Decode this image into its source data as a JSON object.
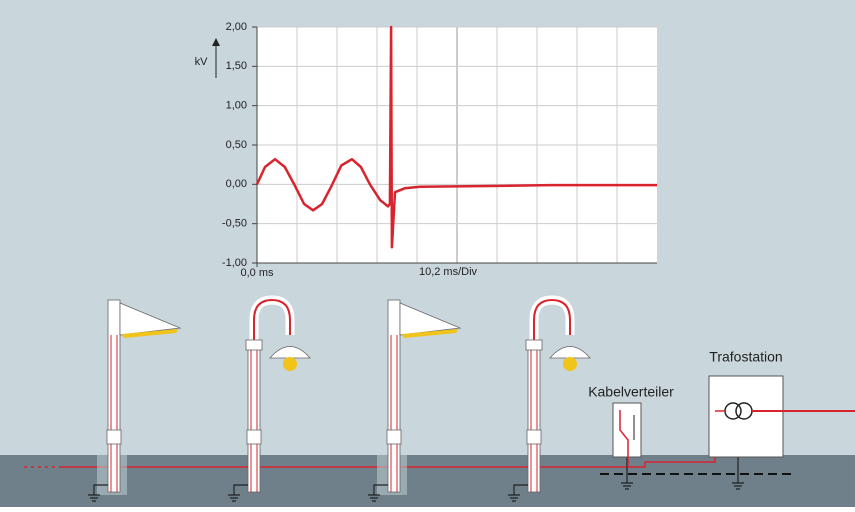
{
  "chart_data": {
    "type": "line",
    "x": [
      0,
      2.04,
      4.6,
      7.1,
      9.7,
      12,
      14.3,
      16.6,
      19,
      21.5,
      24.2,
      26.5,
      28.8,
      31.4,
      33.4,
      33.9,
      34.2,
      34.4,
      35.2,
      37.7,
      41.6,
      62,
      74.7,
      102
    ],
    "series": [
      {
        "color": "#d9232d",
        "values": [
          0,
          0.22,
          0.32,
          0.22,
          -0.02,
          -0.25,
          -0.33,
          -0.25,
          -0.02,
          0.24,
          0.32,
          0.22,
          0,
          -0.2,
          -0.28,
          -0.25,
          2.0,
          -0.8,
          -0.1,
          -0.05,
          -0.03,
          -0.02,
          -0.01,
          -0.01
        ]
      }
    ],
    "y_label": "kV",
    "x_label": "10,2 ms/Div",
    "xlim": [
      0,
      102
    ],
    "xticks": [
      {
        "value": 0,
        "label": "0,0 ms"
      }
    ],
    "ylim": [
      -1,
      2
    ],
    "yticks": [
      {
        "value": -1,
        "label": "-1,00"
      },
      {
        "value": -0.5,
        "label": "-0,50"
      },
      {
        "value": 0,
        "label": "0,00"
      },
      {
        "value": 0.5,
        "label": "0,50"
      },
      {
        "value": 1,
        "label": "1,00"
      },
      {
        "value": 1.5,
        "label": "1,50"
      },
      {
        "value": 2,
        "label": "2,00"
      }
    ],
    "grid": true
  },
  "scene": {
    "labels": [
      "Kabelverteiler",
      "Trafostation"
    ]
  }
}
